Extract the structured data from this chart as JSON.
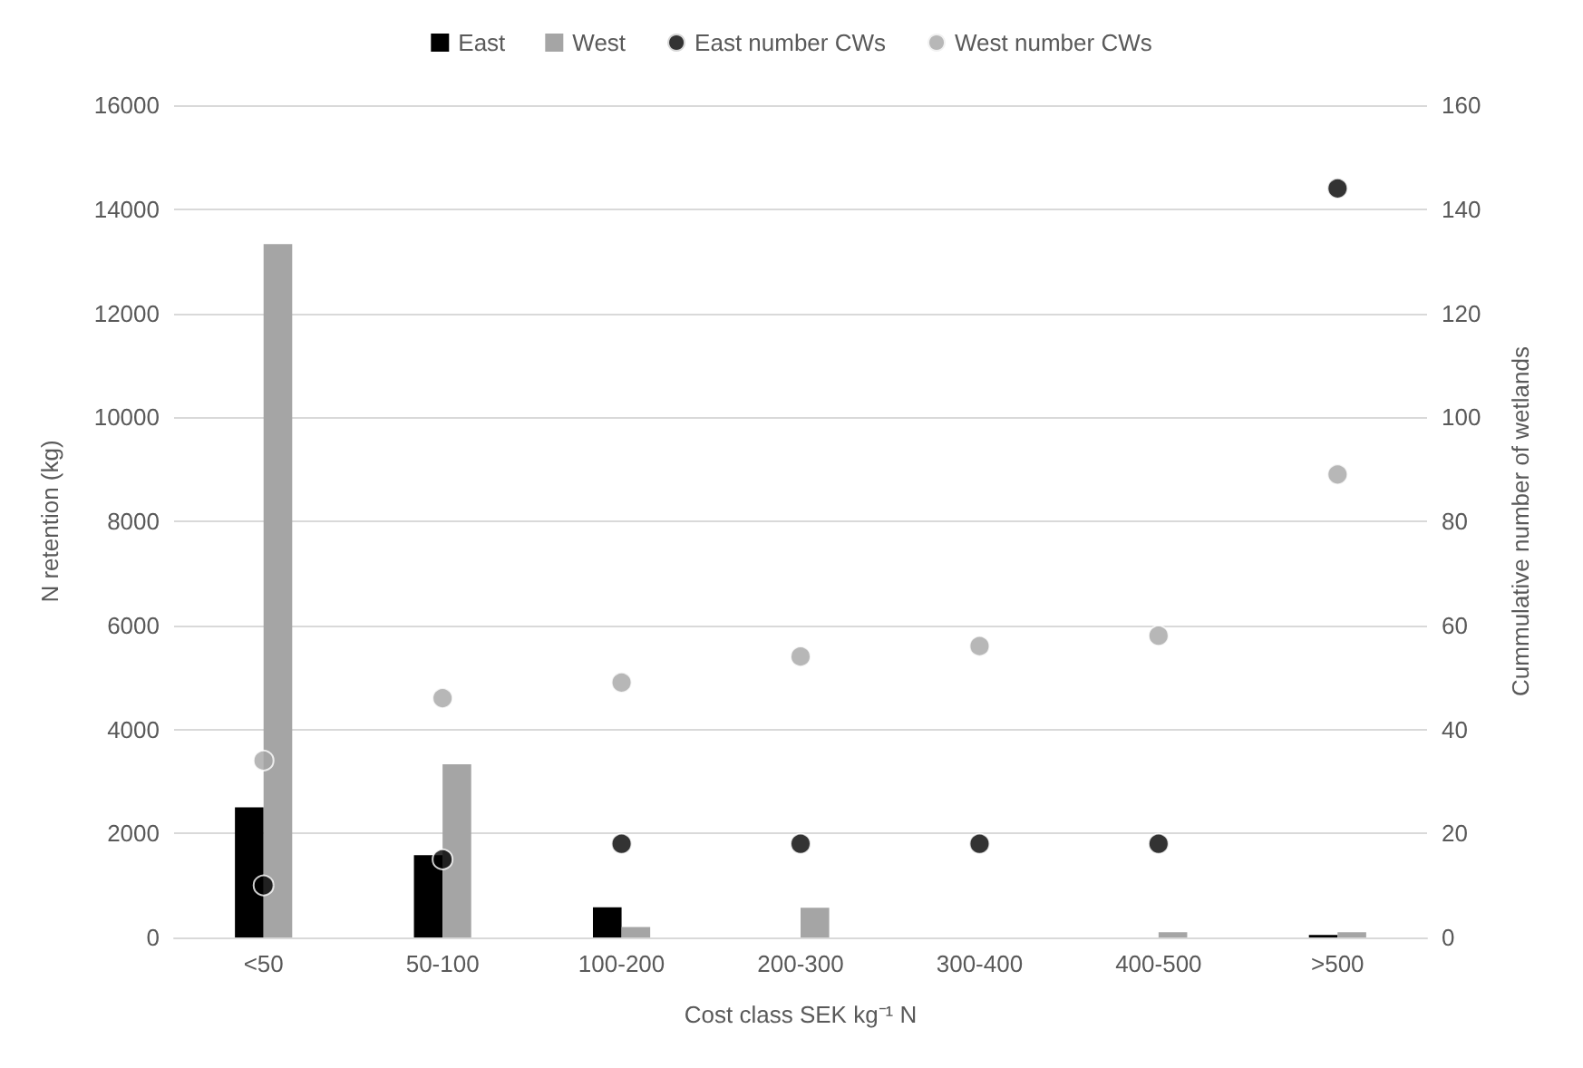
{
  "chart_data": {
    "type": "bar",
    "xlabel": "Cost class SEK kg⁻¹ N",
    "ylabel": "N retention (kg)",
    "y2label": "Cummulative number of wetlands",
    "categories": [
      "<50",
      "50-100",
      "100-200",
      "200-300",
      "300-400",
      "400-500",
      ">500"
    ],
    "series": [
      {
        "name": "East",
        "color": "#000000",
        "values": [
          2500,
          1580,
          580,
          0,
          0,
          0,
          50
        ]
      },
      {
        "name": "West",
        "color": "#a5a5a5",
        "values": [
          13330,
          3330,
          200,
          570,
          0,
          100,
          100
        ]
      },
      {
        "name": "East number CWs",
        "type": "scatter",
        "axis": "y2",
        "color": "#000000",
        "values": [
          10,
          15,
          18,
          18,
          18,
          18,
          144
        ]
      },
      {
        "name": "West number CWs",
        "type": "scatter",
        "axis": "y2",
        "color": "#a5a5a5",
        "values": [
          34,
          46,
          49,
          54,
          56,
          58,
          89
        ]
      }
    ],
    "ylim": [
      0,
      16000
    ],
    "yticks": [
      0,
      2000,
      4000,
      6000,
      8000,
      10000,
      12000,
      14000,
      16000
    ],
    "y2lim": [
      0,
      160
    ],
    "y2ticks": [
      0,
      20,
      40,
      60,
      80,
      100,
      120,
      140,
      160
    ],
    "grid": "y",
    "legend": "top",
    "marker": "circle"
  }
}
